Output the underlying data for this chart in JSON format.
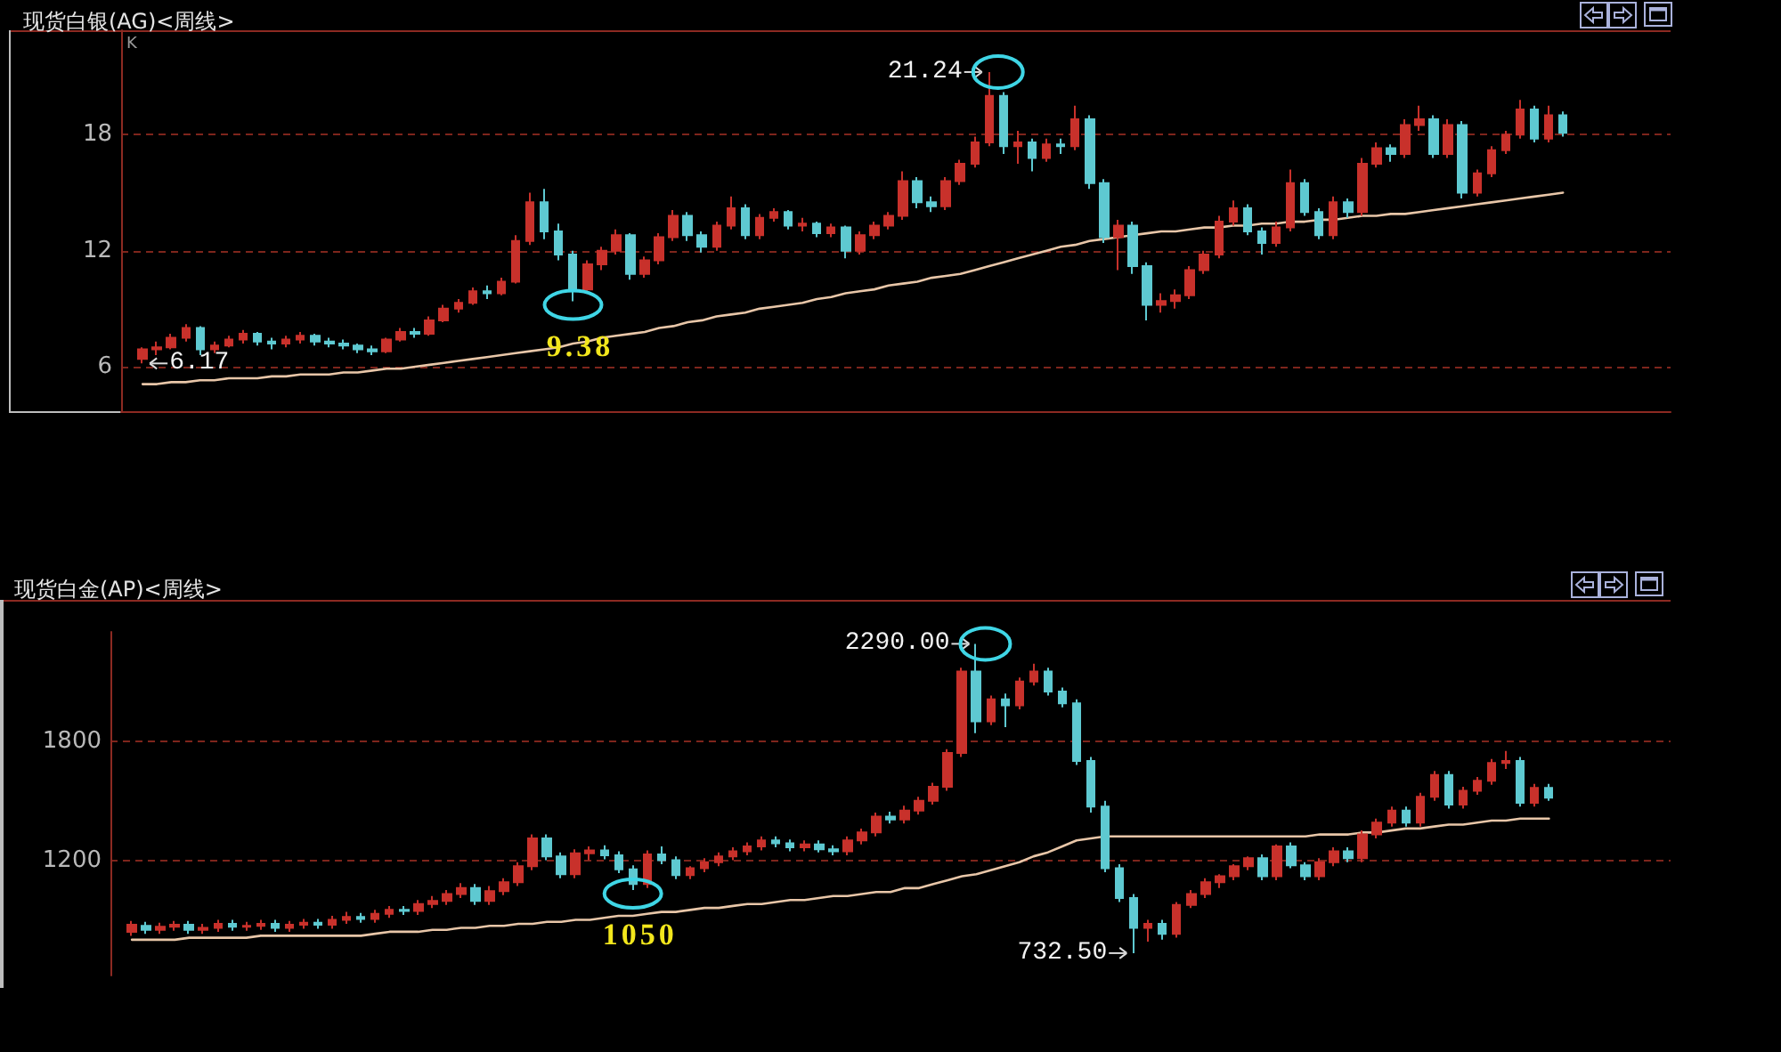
{
  "chart_data": [
    {
      "type": "candlestick",
      "title": "现货白银(AG)<周线>",
      "categories": [
        null,
        null,
        null,
        null,
        null,
        null,
        null,
        null,
        null,
        null,
        null,
        null,
        null,
        null,
        null,
        null,
        null,
        null,
        null,
        null,
        null,
        null,
        null,
        null,
        null,
        null,
        null,
        null,
        null,
        null,
        null,
        null,
        null,
        null,
        null,
        null,
        null,
        null,
        null,
        null,
        null,
        null,
        null,
        null,
        null,
        null,
        null,
        null,
        null,
        null,
        null,
        null,
        null,
        null,
        null,
        null,
        null,
        null,
        null,
        null,
        null,
        null,
        null,
        null,
        null,
        null,
        null,
        null,
        null,
        null,
        null,
        null,
        null,
        null,
        null,
        null,
        null,
        null,
        null,
        null,
        null,
        null,
        null,
        null,
        null,
        null,
        null,
        null,
        null,
        null,
        null,
        null,
        null,
        null,
        null,
        null,
        null,
        null,
        null,
        null
      ],
      "ohlc": [
        [
          6.4,
          7.0,
          6.17,
          6.9
        ],
        [
          6.9,
          7.3,
          6.6,
          7.0
        ],
        [
          7.0,
          7.7,
          6.9,
          7.5
        ],
        [
          7.5,
          8.2,
          7.3,
          8.0
        ],
        [
          8.0,
          8.1,
          6.6,
          6.9
        ],
        [
          6.9,
          7.3,
          6.7,
          7.1
        ],
        [
          7.1,
          7.6,
          7.0,
          7.4
        ],
        [
          7.4,
          7.9,
          7.2,
          7.7
        ],
        [
          7.7,
          7.8,
          7.1,
          7.3
        ],
        [
          7.3,
          7.5,
          6.9,
          7.2
        ],
        [
          7.2,
          7.6,
          7.0,
          7.4
        ],
        [
          7.4,
          7.8,
          7.2,
          7.6
        ],
        [
          7.6,
          7.7,
          7.1,
          7.3
        ],
        [
          7.3,
          7.5,
          7.0,
          7.2
        ],
        [
          7.2,
          7.4,
          6.9,
          7.1
        ],
        [
          7.1,
          7.2,
          6.7,
          6.9
        ],
        [
          6.9,
          7.1,
          6.6,
          6.8
        ],
        [
          6.8,
          7.5,
          6.7,
          7.4
        ],
        [
          7.4,
          8.0,
          7.3,
          7.8
        ],
        [
          7.8,
          8.0,
          7.5,
          7.7
        ],
        [
          7.7,
          8.6,
          7.6,
          8.4
        ],
        [
          8.4,
          9.2,
          8.3,
          9.0
        ],
        [
          9.0,
          9.5,
          8.8,
          9.3
        ],
        [
          9.3,
          10.1,
          9.2,
          9.9
        ],
        [
          9.9,
          10.2,
          9.5,
          9.8
        ],
        [
          9.8,
          10.6,
          9.7,
          10.4
        ],
        [
          10.4,
          12.8,
          10.3,
          12.5
        ],
        [
          12.5,
          15.0,
          12.3,
          14.5
        ],
        [
          14.5,
          15.2,
          12.6,
          13.0
        ],
        [
          13.0,
          13.4,
          11.5,
          11.8
        ],
        [
          11.8,
          12.0,
          9.38,
          10.0
        ],
        [
          10.0,
          11.5,
          9.8,
          11.3
        ],
        [
          11.3,
          12.2,
          11.0,
          12.0
        ],
        [
          12.0,
          13.1,
          11.8,
          12.8
        ],
        [
          12.8,
          12.9,
          10.5,
          10.8
        ],
        [
          10.8,
          11.7,
          10.6,
          11.5
        ],
        [
          11.5,
          12.9,
          11.3,
          12.7
        ],
        [
          12.7,
          14.1,
          12.5,
          13.8
        ],
        [
          13.8,
          14.0,
          12.5,
          12.8
        ],
        [
          12.8,
          13.0,
          11.9,
          12.2
        ],
        [
          12.2,
          13.5,
          12.0,
          13.3
        ],
        [
          13.3,
          14.8,
          13.1,
          14.2
        ],
        [
          14.2,
          14.4,
          12.6,
          12.8
        ],
        [
          12.8,
          13.9,
          12.6,
          13.7
        ],
        [
          13.7,
          14.2,
          13.5,
          14.0
        ],
        [
          14.0,
          14.1,
          13.1,
          13.3
        ],
        [
          13.3,
          13.7,
          13.0,
          13.4
        ],
        [
          13.4,
          13.5,
          12.7,
          12.9
        ],
        [
          12.9,
          13.4,
          12.7,
          13.2
        ],
        [
          13.2,
          13.3,
          11.6,
          12.0
        ],
        [
          12.0,
          13.0,
          11.8,
          12.8
        ],
        [
          12.8,
          13.5,
          12.6,
          13.3
        ],
        [
          13.3,
          14.0,
          13.1,
          13.8
        ],
        [
          13.8,
          16.1,
          13.6,
          15.6
        ],
        [
          15.6,
          15.8,
          14.2,
          14.5
        ],
        [
          14.5,
          14.8,
          14.0,
          14.3
        ],
        [
          14.3,
          15.8,
          14.1,
          15.6
        ],
        [
          15.6,
          16.7,
          15.4,
          16.5
        ],
        [
          16.5,
          17.9,
          16.3,
          17.6
        ],
        [
          17.6,
          21.24,
          17.4,
          20.0
        ],
        [
          20.0,
          20.2,
          17.0,
          17.4
        ],
        [
          17.4,
          18.2,
          16.5,
          17.6
        ],
        [
          17.6,
          17.8,
          16.1,
          16.8
        ],
        [
          16.8,
          17.8,
          16.6,
          17.5
        ],
        [
          17.5,
          17.8,
          17.0,
          17.4
        ],
        [
          17.4,
          19.5,
          17.2,
          18.8
        ],
        [
          18.8,
          19.0,
          15.2,
          15.5
        ],
        [
          15.5,
          15.7,
          12.4,
          12.7
        ],
        [
          12.7,
          13.6,
          11.0,
          13.3
        ],
        [
          13.3,
          13.5,
          10.8,
          11.2
        ],
        [
          11.2,
          11.4,
          8.4,
          9.2
        ],
        [
          9.2,
          9.8,
          8.8,
          9.4
        ],
        [
          9.4,
          10.0,
          9.0,
          9.7
        ],
        [
          9.7,
          11.2,
          9.5,
          11.0
        ],
        [
          11.0,
          12.0,
          10.8,
          11.8
        ],
        [
          11.8,
          13.8,
          11.6,
          13.5
        ],
        [
          13.5,
          14.6,
          13.3,
          14.2
        ],
        [
          14.2,
          14.4,
          12.8,
          13.0
        ],
        [
          13.0,
          13.2,
          11.8,
          12.4
        ],
        [
          12.4,
          13.5,
          12.2,
          13.2
        ],
        [
          13.2,
          16.2,
          13.0,
          15.5
        ],
        [
          15.5,
          15.7,
          13.8,
          14.0
        ],
        [
          14.0,
          14.2,
          12.6,
          12.8
        ],
        [
          12.8,
          14.8,
          12.6,
          14.5
        ],
        [
          14.5,
          14.7,
          13.7,
          14.0
        ],
        [
          14.0,
          16.8,
          13.8,
          16.5
        ],
        [
          16.5,
          17.6,
          16.3,
          17.3
        ],
        [
          17.3,
          17.5,
          16.6,
          17.0
        ],
        [
          17.0,
          18.8,
          16.8,
          18.5
        ],
        [
          18.5,
          19.5,
          18.2,
          18.8
        ],
        [
          18.8,
          19.0,
          16.8,
          17.0
        ],
        [
          17.0,
          18.8,
          16.8,
          18.5
        ],
        [
          18.5,
          18.7,
          14.7,
          15.0
        ],
        [
          15.0,
          16.2,
          14.8,
          16.0
        ],
        [
          16.0,
          17.4,
          15.8,
          17.2
        ],
        [
          17.2,
          18.2,
          17.0,
          18.0
        ],
        [
          18.0,
          19.8,
          17.8,
          19.3
        ],
        [
          19.3,
          19.5,
          17.6,
          17.8
        ],
        [
          17.8,
          19.5,
          17.6,
          19.0
        ],
        [
          19.0,
          19.2,
          17.9,
          18.1
        ]
      ],
      "series": [
        {
          "type": "line",
          "color": "#e8c6a8",
          "values": [
            5.1,
            5.1,
            5.2,
            5.2,
            5.3,
            5.3,
            5.4,
            5.4,
            5.4,
            5.5,
            5.5,
            5.6,
            5.6,
            5.6,
            5.7,
            5.7,
            5.8,
            5.9,
            5.9,
            6.0,
            6.1,
            6.2,
            6.3,
            6.4,
            6.5,
            6.6,
            6.7,
            6.8,
            6.9,
            7.0,
            7.2,
            7.3,
            7.5,
            7.6,
            7.7,
            7.8,
            8.0,
            8.1,
            8.3,
            8.4,
            8.6,
            8.7,
            8.8,
            9.0,
            9.1,
            9.2,
            9.3,
            9.5,
            9.6,
            9.8,
            9.9,
            10.0,
            10.2,
            10.3,
            10.4,
            10.6,
            10.7,
            10.8,
            11.0,
            11.2,
            11.4,
            11.6,
            11.8,
            12.0,
            12.2,
            12.3,
            12.5,
            12.6,
            12.7,
            12.8,
            12.9,
            13.0,
            13.0,
            13.1,
            13.2,
            13.2,
            13.3,
            13.3,
            13.4,
            13.4,
            13.5,
            13.5,
            13.6,
            13.6,
            13.7,
            13.8,
            13.8,
            13.9,
            13.9,
            14.0,
            14.1,
            14.2,
            14.3,
            14.4,
            14.5,
            14.6,
            14.7,
            14.8,
            14.9,
            15.0
          ]
        }
      ],
      "ylim": [
        3.7,
        23.4
      ],
      "yticks": [
        6,
        12,
        18
      ],
      "grid": "y",
      "tick_labels": "y",
      "marker": "none",
      "annotations": [
        "K",
        "21.24",
        "6.17",
        {
          "text": "9.38",
          "y": 9.38
        }
      ]
    },
    {
      "type": "candlestick",
      "title": "现货白金(AP)<周线>",
      "categories": [
        null,
        null,
        null,
        null,
        null,
        null,
        null,
        null,
        null,
        null,
        null,
        null,
        null,
        null,
        null,
        null,
        null,
        null,
        null,
        null,
        null,
        null,
        null,
        null,
        null,
        null,
        null,
        null,
        null,
        null,
        null,
        null,
        null,
        null,
        null,
        null,
        null,
        null,
        null,
        null,
        null,
        null,
        null,
        null,
        null,
        null,
        null,
        null,
        null,
        null,
        null,
        null,
        null,
        null,
        null,
        null,
        null,
        null,
        null,
        null,
        null,
        null,
        null,
        null,
        null,
        null,
        null,
        null,
        null,
        null,
        null,
        null,
        null,
        null,
        null,
        null,
        null,
        null,
        null,
        null,
        null,
        null,
        null,
        null,
        null,
        null,
        null,
        null,
        null,
        null,
        null,
        null,
        null,
        null,
        null,
        null,
        null,
        null,
        null,
        null
      ],
      "ohlc": [
        [
          840,
          895,
          820,
          875
        ],
        [
          870,
          890,
          830,
          850
        ],
        [
          850,
          885,
          830,
          865
        ],
        [
          865,
          895,
          845,
          875
        ],
        [
          875,
          895,
          830,
          850
        ],
        [
          850,
          880,
          830,
          860
        ],
        [
          860,
          900,
          840,
          880
        ],
        [
          880,
          900,
          845,
          865
        ],
        [
          865,
          890,
          845,
          870
        ],
        [
          870,
          900,
          850,
          880
        ],
        [
          880,
          900,
          840,
          860
        ],
        [
          860,
          895,
          840,
          875
        ],
        [
          875,
          905,
          855,
          885
        ],
        [
          885,
          905,
          855,
          875
        ],
        [
          875,
          920,
          855,
          900
        ],
        [
          900,
          940,
          880,
          915
        ],
        [
          915,
          935,
          885,
          905
        ],
        [
          905,
          950,
          885,
          930
        ],
        [
          930,
          970,
          910,
          950
        ],
        [
          950,
          970,
          925,
          945
        ],
        [
          945,
          1000,
          925,
          980
        ],
        [
          980,
          1020,
          960,
          995
        ],
        [
          995,
          1050,
          975,
          1030
        ],
        [
          1030,
          1085,
          1010,
          1060
        ],
        [
          1060,
          1080,
          975,
          995
        ],
        [
          995,
          1070,
          975,
          1045
        ],
        [
          1045,
          1110,
          1025,
          1090
        ],
        [
          1090,
          1190,
          1070,
          1170
        ],
        [
          1170,
          1330,
          1150,
          1310
        ],
        [
          1310,
          1330,
          1200,
          1220
        ],
        [
          1220,
          1240,
          1110,
          1130
        ],
        [
          1130,
          1255,
          1110,
          1235
        ],
        [
          1235,
          1270,
          1200,
          1250
        ],
        [
          1250,
          1275,
          1205,
          1225
        ],
        [
          1225,
          1245,
          1135,
          1155
        ],
        [
          1155,
          1175,
          1050,
          1080
        ],
        [
          1080,
          1250,
          1060,
          1230
        ],
        [
          1230,
          1270,
          1180,
          1200
        ],
        [
          1200,
          1220,
          1105,
          1125
        ],
        [
          1125,
          1170,
          1105,
          1160
        ],
        [
          1160,
          1210,
          1140,
          1190
        ],
        [
          1190,
          1240,
          1170,
          1220
        ],
        [
          1220,
          1265,
          1200,
          1245
        ],
        [
          1245,
          1290,
          1225,
          1270
        ],
        [
          1270,
          1320,
          1250,
          1300
        ],
        [
          1300,
          1320,
          1265,
          1285
        ],
        [
          1285,
          1305,
          1245,
          1265
        ],
        [
          1265,
          1300,
          1245,
          1280
        ],
        [
          1280,
          1300,
          1240,
          1255
        ],
        [
          1255,
          1275,
          1225,
          1245
        ],
        [
          1245,
          1320,
          1225,
          1300
        ],
        [
          1300,
          1360,
          1280,
          1340
        ],
        [
          1340,
          1440,
          1320,
          1420
        ],
        [
          1420,
          1445,
          1385,
          1405
        ],
        [
          1405,
          1475,
          1385,
          1450
        ],
        [
          1450,
          1520,
          1430,
          1500
        ],
        [
          1500,
          1590,
          1480,
          1570
        ],
        [
          1570,
          1760,
          1550,
          1740
        ],
        [
          1740,
          2170,
          1720,
          2150
        ],
        [
          2150,
          2290,
          1840,
          1900
        ],
        [
          1900,
          2030,
          1880,
          2010
        ],
        [
          2010,
          2040,
          1870,
          1980
        ],
        [
          1980,
          2120,
          1960,
          2100
        ],
        [
          2100,
          2190,
          2080,
          2150
        ],
        [
          2150,
          2170,
          2030,
          2050
        ],
        [
          2050,
          2070,
          1970,
          1990
        ],
        [
          1990,
          2010,
          1680,
          1700
        ],
        [
          1700,
          1720,
          1440,
          1470
        ],
        [
          1470,
          1500,
          1140,
          1160
        ],
        [
          1160,
          1180,
          990,
          1010
        ],
        [
          1010,
          1030,
          732.5,
          860
        ],
        [
          860,
          900,
          790,
          880
        ],
        [
          880,
          900,
          800,
          830
        ],
        [
          830,
          990,
          810,
          975
        ],
        [
          975,
          1050,
          960,
          1030
        ],
        [
          1030,
          1110,
          1010,
          1090
        ],
        [
          1090,
          1130,
          1060,
          1120
        ],
        [
          1120,
          1180,
          1100,
          1170
        ],
        [
          1170,
          1220,
          1150,
          1210
        ],
        [
          1210,
          1230,
          1100,
          1120
        ],
        [
          1120,
          1280,
          1100,
          1270
        ],
        [
          1270,
          1290,
          1160,
          1175
        ],
        [
          1175,
          1190,
          1100,
          1120
        ],
        [
          1120,
          1210,
          1100,
          1190
        ],
        [
          1190,
          1265,
          1170,
          1245
        ],
        [
          1245,
          1265,
          1190,
          1210
        ],
        [
          1210,
          1350,
          1190,
          1330
        ],
        [
          1330,
          1410,
          1310,
          1390
        ],
        [
          1390,
          1470,
          1370,
          1450
        ],
        [
          1450,
          1470,
          1370,
          1390
        ],
        [
          1390,
          1540,
          1370,
          1520
        ],
        [
          1520,
          1650,
          1500,
          1630
        ],
        [
          1630,
          1650,
          1460,
          1480
        ],
        [
          1480,
          1570,
          1460,
          1550
        ],
        [
          1550,
          1620,
          1530,
          1600
        ],
        [
          1600,
          1710,
          1580,
          1690
        ],
        [
          1690,
          1750,
          1660,
          1700
        ],
        [
          1700,
          1720,
          1470,
          1490
        ],
        [
          1490,
          1585,
          1470,
          1565
        ],
        [
          1565,
          1585,
          1500,
          1515
        ]
      ],
      "series": [
        {
          "type": "line",
          "color": "#e8c6a8",
          "values": [
            800,
            800,
            800,
            800,
            810,
            810,
            810,
            810,
            810,
            820,
            820,
            820,
            820,
            820,
            820,
            820,
            820,
            830,
            840,
            840,
            840,
            850,
            850,
            860,
            860,
            870,
            870,
            880,
            880,
            890,
            890,
            900,
            900,
            910,
            920,
            920,
            930,
            940,
            940,
            950,
            960,
            960,
            970,
            980,
            980,
            990,
            1000,
            1000,
            1010,
            1020,
            1020,
            1030,
            1040,
            1040,
            1060,
            1060,
            1080,
            1100,
            1120,
            1130,
            1150,
            1170,
            1190,
            1220,
            1240,
            1270,
            1300,
            1310,
            1320,
            1320,
            1320,
            1320,
            1320,
            1320,
            1320,
            1320,
            1320,
            1320,
            1320,
            1320,
            1320,
            1320,
            1320,
            1330,
            1330,
            1330,
            1340,
            1340,
            1350,
            1360,
            1360,
            1370,
            1380,
            1380,
            1390,
            1400,
            1400,
            1410,
            1410,
            1410
          ]
        }
      ],
      "ylim": [
        620,
        2350
      ],
      "yticks": [
        1200,
        1800
      ],
      "grid": "y",
      "tick_labels": "y",
      "marker": "none",
      "annotations": [
        "2290.00",
        "732.50",
        {
          "text": "1050",
          "y": 1050
        }
      ]
    }
  ]
}
